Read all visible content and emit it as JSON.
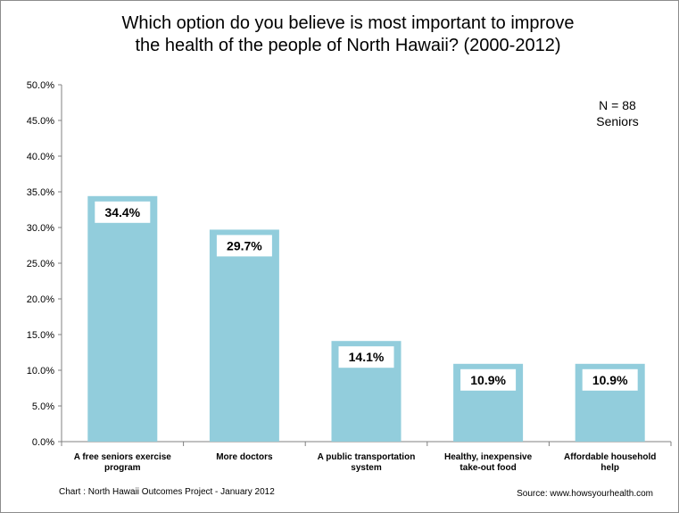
{
  "chart_data": {
    "type": "bar",
    "title_lines": [
      "Which option do you believe is most important to improve",
      "the health of the people of North Hawaii? (2000-2012)"
    ],
    "categories": [
      [
        "A free seniors exercise",
        "program"
      ],
      [
        "More doctors"
      ],
      [
        "A public transportation",
        "system"
      ],
      [
        "Healthy, inexpensive",
        "take-out food"
      ],
      [
        "Affordable household",
        "help"
      ]
    ],
    "values": [
      34.4,
      29.7,
      14.1,
      10.9,
      10.9
    ],
    "data_labels": [
      "34.4%",
      "29.7%",
      "14.1%",
      "10.9%",
      "10.9%"
    ],
    "ylim": [
      0,
      50
    ],
    "y_ticks": [
      "0.0%",
      "5.0%",
      "10.0%",
      "15.0%",
      "20.0%",
      "25.0%",
      "30.0%",
      "35.0%",
      "40.0%",
      "45.0%",
      "50.0%"
    ],
    "grid": false,
    "annotation_lines": [
      "N = 88",
      "Seniors"
    ],
    "footer_left": "Chart :  North Hawaii Outcomes Project - January 2012",
    "footer_right": "Source:  www.howsyourhealth.com",
    "colors": {
      "bar": "#92cddc",
      "axis": "#808080"
    }
  }
}
